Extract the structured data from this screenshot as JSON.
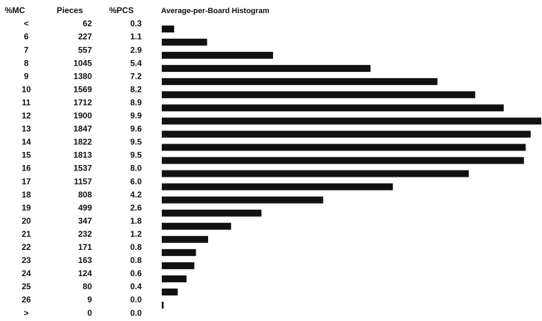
{
  "chart_data": {
    "type": "bar",
    "title": "Average-per-Board Histogram",
    "columns": [
      "%MC",
      "Pieces",
      "%PCS"
    ],
    "categories": [
      "<",
      "6",
      "7",
      "8",
      "9",
      "10",
      "11",
      "12",
      "13",
      "14",
      "15",
      "16",
      "17",
      "18",
      "19",
      "20",
      "21",
      "22",
      "23",
      "24",
      "25",
      "26",
      ">"
    ],
    "values": [
      62,
      227,
      557,
      1045,
      1380,
      1569,
      1712,
      1900,
      1847,
      1822,
      1813,
      1537,
      1157,
      808,
      499,
      347,
      232,
      171,
      163,
      124,
      80,
      9,
      0
    ],
    "pcs": [
      "0.3",
      "1.1",
      "2.9",
      "5.4",
      "7.2",
      "8.2",
      "8.9",
      "9.9",
      "9.6",
      "9.5",
      "9.5",
      "8.0",
      "6.0",
      "4.2",
      "2.6",
      "1.8",
      "1.2",
      "0.8",
      "0.8",
      "0.6",
      "0.4",
      "0.0",
      "0.0"
    ],
    "color": "#111111"
  }
}
